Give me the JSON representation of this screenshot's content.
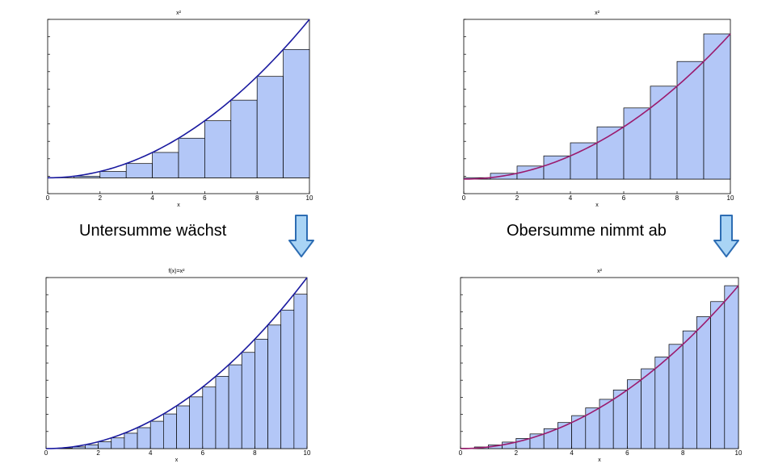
{
  "captions": {
    "left": "Untersumme wächst",
    "right": "Obersumme nimmt ab"
  },
  "colors": {
    "bar_fill": "#b3c7f7",
    "bar_stroke": "#000000",
    "curve_left": "#1a1aa0",
    "curve_right": "#9b1b6e",
    "arrow_fill": "#a9d4f5",
    "arrow_stroke": "#2d6db3"
  },
  "chart_data": [
    {
      "type": "bar",
      "title": "x²",
      "xlabel": "x",
      "xlim": [
        0,
        10
      ],
      "ylim": [
        -10,
        100
      ],
      "xticks": [
        "0",
        "2",
        "4",
        "6",
        "8",
        "10"
      ],
      "sum": "lower",
      "bins": 10,
      "function": "x^2",
      "x": [
        0,
        1,
        2,
        3,
        4,
        5,
        6,
        7,
        8,
        9
      ],
      "values": [
        0,
        1,
        4,
        9,
        16,
        25,
        36,
        49,
        64,
        81
      ]
    },
    {
      "type": "bar",
      "title": "x²",
      "xlabel": "x",
      "xlim": [
        0,
        10
      ],
      "ylim": [
        -10,
        110
      ],
      "xticks": [
        "0",
        "2",
        "4",
        "6",
        "8",
        "10"
      ],
      "sum": "upper",
      "bins": 10,
      "function": "x^2",
      "x": [
        0,
        1,
        2,
        3,
        4,
        5,
        6,
        7,
        8,
        9
      ],
      "values": [
        1,
        4,
        9,
        16,
        25,
        36,
        49,
        64,
        81,
        100
      ]
    },
    {
      "type": "bar",
      "title": "f(x)=x²",
      "xlabel": "x",
      "xlim": [
        0,
        10
      ],
      "ylim": [
        0,
        100
      ],
      "xticks": [
        "0",
        "2",
        "4",
        "6",
        "8",
        "10"
      ],
      "sum": "lower",
      "bins": 20,
      "function": "x^2",
      "x": [
        0,
        0.5,
        1,
        1.5,
        2,
        2.5,
        3,
        3.5,
        4,
        4.5,
        5,
        5.5,
        6,
        6.5,
        7,
        7.5,
        8,
        8.5,
        9,
        9.5
      ],
      "values": [
        0,
        0.25,
        1,
        2.25,
        4,
        6.25,
        9,
        12.25,
        16,
        20.25,
        25,
        30.25,
        36,
        42.25,
        49,
        56.25,
        64,
        72.25,
        81,
        90.25
      ]
    },
    {
      "type": "bar",
      "title": "x²",
      "xlabel": "x",
      "xlim": [
        0,
        10
      ],
      "ylim": [
        0,
        105
      ],
      "xticks": [
        "0",
        "2",
        "4",
        "6",
        "8",
        "10"
      ],
      "sum": "upper",
      "bins": 20,
      "function": "x^2",
      "x": [
        0,
        0.5,
        1,
        1.5,
        2,
        2.5,
        3,
        3.5,
        4,
        4.5,
        5,
        5.5,
        6,
        6.5,
        7,
        7.5,
        8,
        8.5,
        9,
        9.5
      ],
      "values": [
        0.25,
        1,
        2.25,
        4,
        6.25,
        9,
        12.25,
        16,
        20.25,
        25,
        30.25,
        36,
        42.25,
        49,
        56.25,
        64,
        72.25,
        81,
        90.25,
        100
      ]
    }
  ]
}
